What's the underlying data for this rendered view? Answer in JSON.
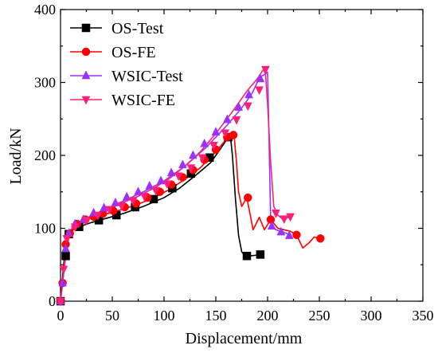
{
  "chart_data": {
    "type": "line",
    "title": "",
    "xlabel": "Displacement/mm",
    "ylabel": "Load/kN",
    "xlim": [
      0,
      350
    ],
    "ylim": [
      0,
      400
    ],
    "xticks": [
      "0",
      "50",
      "100",
      "150",
      "200",
      "250",
      "300",
      "350"
    ],
    "yticks": [
      "0",
      "100",
      "200",
      "300",
      "400"
    ],
    "grid": false,
    "legend_position": "top-left",
    "series": [
      {
        "name": "OS-Test",
        "color": "#000000",
        "marker": "square",
        "line": [
          [
            0,
            0
          ],
          [
            3,
            50
          ],
          [
            5,
            75
          ],
          [
            8,
            90
          ],
          [
            12,
            98
          ],
          [
            18,
            102
          ],
          [
            30,
            108
          ],
          [
            45,
            114
          ],
          [
            60,
            120
          ],
          [
            80,
            130
          ],
          [
            100,
            142
          ],
          [
            115,
            155
          ],
          [
            130,
            172
          ],
          [
            145,
            190
          ],
          [
            155,
            210
          ],
          [
            162,
            225
          ],
          [
            164,
            228
          ],
          [
            166,
            200
          ],
          [
            169,
            140
          ],
          [
            172,
            90
          ],
          [
            175,
            68
          ],
          [
            178,
            62
          ],
          [
            182,
            62
          ],
          [
            188,
            63
          ],
          [
            193,
            64
          ]
        ],
        "markers": [
          [
            0,
            0
          ],
          [
            5,
            62
          ],
          [
            8,
            92
          ],
          [
            18,
            102
          ],
          [
            37,
            111
          ],
          [
            54,
            118
          ],
          [
            72,
            129
          ],
          [
            90,
            140
          ],
          [
            108,
            155
          ],
          [
            126,
            175
          ],
          [
            144,
            197
          ],
          [
            162,
            225
          ],
          [
            180,
            62
          ],
          [
            193,
            64
          ]
        ]
      },
      {
        "name": "OS-FE",
        "color": "#ff0000",
        "marker": "circle",
        "line": [
          [
            0,
            0
          ],
          [
            2,
            25
          ],
          [
            4,
            50
          ],
          [
            6,
            75
          ],
          [
            9,
            92
          ],
          [
            14,
            103
          ],
          [
            20,
            109
          ],
          [
            30,
            114
          ],
          [
            45,
            120
          ],
          [
            60,
            126
          ],
          [
            75,
            133
          ],
          [
            90,
            142
          ],
          [
            105,
            153
          ],
          [
            120,
            167
          ],
          [
            135,
            183
          ],
          [
            150,
            205
          ],
          [
            160,
            222
          ],
          [
            165,
            228
          ],
          [
            168,
            222
          ],
          [
            170,
            190
          ],
          [
            172,
            150
          ],
          [
            175,
            130
          ],
          [
            180,
            142
          ],
          [
            186,
            98
          ],
          [
            192,
            115
          ],
          [
            197,
            98
          ],
          [
            203,
            112
          ],
          [
            210,
            100
          ],
          [
            222,
            96
          ],
          [
            228,
            91
          ],
          [
            234,
            73
          ],
          [
            240,
            80
          ],
          [
            245,
            88
          ],
          [
            251,
            86
          ]
        ],
        "markers": [
          [
            0,
            0
          ],
          [
            2,
            25
          ],
          [
            5,
            78
          ],
          [
            9,
            93
          ],
          [
            16,
            106
          ],
          [
            24,
            112
          ],
          [
            32,
            116
          ],
          [
            41,
            120
          ],
          [
            51,
            124
          ],
          [
            62,
            129
          ],
          [
            73,
            134
          ],
          [
            84,
            142
          ],
          [
            96,
            150
          ],
          [
            107,
            160
          ],
          [
            118,
            170
          ],
          [
            128,
            180
          ],
          [
            139,
            194
          ],
          [
            150,
            208
          ],
          [
            161,
            225
          ],
          [
            167,
            228
          ],
          [
            181,
            142
          ],
          [
            203,
            112
          ],
          [
            228,
            91
          ],
          [
            251,
            86
          ]
        ]
      },
      {
        "name": "WSIC-Test",
        "color": "#9932ff",
        "marker": "triangle-up",
        "line": [
          [
            0,
            0
          ],
          [
            2,
            25
          ],
          [
            4,
            55
          ],
          [
            6,
            80
          ],
          [
            10,
            98
          ],
          [
            15,
            106
          ],
          [
            25,
            114
          ],
          [
            40,
            124
          ],
          [
            60,
            137
          ],
          [
            80,
            150
          ],
          [
            100,
            165
          ],
          [
            120,
            185
          ],
          [
            140,
            210
          ],
          [
            160,
            240
          ],
          [
            175,
            265
          ],
          [
            185,
            285
          ],
          [
            190,
            300
          ],
          [
            193,
            308
          ],
          [
            196,
            310
          ],
          [
            198,
            312
          ],
          [
            200,
            314
          ],
          [
            201,
            250
          ],
          [
            202,
            180
          ],
          [
            203,
            110
          ],
          [
            205,
            100
          ],
          [
            210,
            97
          ],
          [
            215,
            95
          ],
          [
            220,
            92
          ],
          [
            223,
            88
          ]
        ],
        "markers": [
          [
            0,
            0
          ],
          [
            2,
            25
          ],
          [
            5,
            72
          ],
          [
            8,
            93
          ],
          [
            14,
            106
          ],
          [
            22,
            112
          ],
          [
            32,
            121
          ],
          [
            42,
            128
          ],
          [
            53,
            135
          ],
          [
            64,
            143
          ],
          [
            75,
            150
          ],
          [
            86,
            158
          ],
          [
            97,
            165
          ],
          [
            107,
            176
          ],
          [
            118,
            187
          ],
          [
            128,
            200
          ],
          [
            139,
            216
          ],
          [
            150,
            232
          ],
          [
            161,
            249
          ],
          [
            172,
            266
          ],
          [
            182,
            283
          ],
          [
            193,
            305
          ],
          [
            204,
            103
          ],
          [
            213,
            95
          ],
          [
            221,
            90
          ]
        ]
      },
      {
        "name": "WSIC-FE",
        "color": "#ff1f7a",
        "marker": "triangle-down",
        "line": [
          [
            0,
            0
          ],
          [
            2,
            25
          ],
          [
            4,
            55
          ],
          [
            7,
            85
          ],
          [
            11,
            100
          ],
          [
            18,
            109
          ],
          [
            30,
            117
          ],
          [
            45,
            125
          ],
          [
            60,
            135
          ],
          [
            75,
            144
          ],
          [
            90,
            155
          ],
          [
            105,
            168
          ],
          [
            120,
            185
          ],
          [
            135,
            205
          ],
          [
            150,
            230
          ],
          [
            165,
            258
          ],
          [
            180,
            288
          ],
          [
            190,
            305
          ],
          [
            196,
            318
          ],
          [
            198,
            312
          ],
          [
            200,
            270
          ],
          [
            203,
            190
          ],
          [
            206,
            130
          ],
          [
            210,
            118
          ],
          [
            215,
            112
          ],
          [
            220,
            115
          ],
          [
            222,
            116
          ]
        ],
        "markers": [
          [
            0,
            0
          ],
          [
            3,
            44
          ],
          [
            6,
            86
          ],
          [
            14,
            102
          ],
          [
            25,
            111
          ],
          [
            36,
            118
          ],
          [
            47,
            126
          ],
          [
            59,
            131
          ],
          [
            70,
            138
          ],
          [
            81,
            144
          ],
          [
            92,
            152
          ],
          [
            103,
            161
          ],
          [
            114,
            172
          ],
          [
            126,
            183
          ],
          [
            137,
            197
          ],
          [
            148,
            214
          ],
          [
            159,
            231
          ],
          [
            170,
            249
          ],
          [
            181,
            268
          ],
          [
            192,
            290
          ],
          [
            198,
            318
          ],
          [
            208,
            121
          ],
          [
            216,
            113
          ],
          [
            222,
            116
          ]
        ]
      }
    ]
  }
}
